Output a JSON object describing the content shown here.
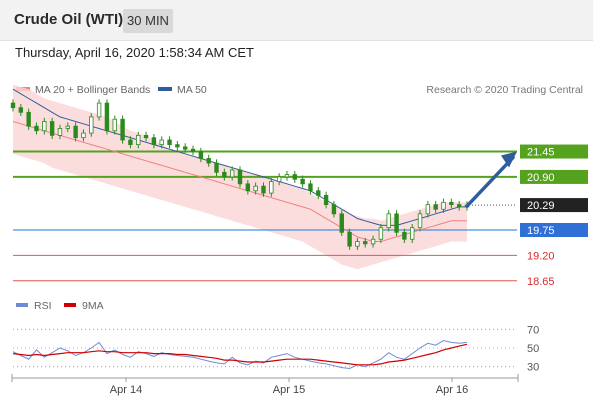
{
  "header": {
    "instrument": "Crude Oil (WTI)",
    "interval_button": "30 MIN"
  },
  "timestamp": "Thursday, April 16, 2020 1:58:34 AM CET",
  "legend": {
    "ma20": "MA 20 + Bollinger Bands",
    "ma50": "MA 50",
    "rsi": "RSI",
    "rsi_ma": "9MA"
  },
  "credit": "Research © 2020 Trading Central",
  "colors": {
    "ma20": "#f08080",
    "ma50": "#2e5d9f",
    "bollinger": "#fbd5d5",
    "resistance": "#54a21d",
    "support_blue": "#4a90e2",
    "support_red": "#e05656",
    "candle": "#2b8a1e",
    "arrow": "#2e5d9f",
    "rsi": "#6f8ad6",
    "rsi_ma": "#d00000"
  },
  "chart_data": [
    {
      "type": "candlestick",
      "xlabel": "",
      "ylabel": "",
      "x_ticks": [
        "Apr 14",
        "Apr 15",
        "Apr 16"
      ],
      "ylim": [
        18.45,
        22.35
      ],
      "levels": [
        {
          "value": 21.45,
          "label": "21.45",
          "kind": "resistance"
        },
        {
          "value": 20.9,
          "label": "20.90",
          "kind": "resistance"
        },
        {
          "value": 20.29,
          "label": "20.29",
          "kind": "current"
        },
        {
          "value": 19.75,
          "label": "19.75",
          "kind": "support-blue"
        },
        {
          "value": 19.2,
          "label": "19.20",
          "kind": "support-red"
        },
        {
          "value": 18.65,
          "label": "18.65",
          "kind": "support-red"
        }
      ],
      "close_series": [
        22.4,
        22.3,
        22.0,
        21.9,
        22.1,
        21.8,
        21.95,
        22.0,
        21.75,
        21.85,
        22.2,
        22.5,
        21.9,
        22.15,
        21.7,
        21.6,
        21.8,
        21.75,
        21.6,
        21.7,
        21.6,
        21.55,
        21.5,
        21.45,
        21.3,
        21.2,
        21.0,
        20.9,
        21.05,
        20.75,
        20.6,
        20.7,
        20.55,
        20.8,
        20.9,
        20.95,
        20.85,
        20.75,
        20.6,
        20.5,
        20.3,
        20.1,
        19.7,
        19.4,
        19.5,
        19.45,
        19.55,
        19.8,
        20.1,
        19.7,
        19.55,
        19.8,
        20.1,
        20.3,
        20.2,
        20.35,
        20.3,
        20.25,
        20.29
      ],
      "bollinger_upper": [
        22.9,
        22.85,
        22.8,
        22.7,
        22.6,
        22.55,
        22.5,
        22.45,
        22.4,
        22.35,
        22.3,
        22.25,
        22.2,
        22.1,
        22.0,
        21.9,
        21.85,
        21.8,
        21.7,
        21.6,
        21.5,
        21.45,
        21.4,
        21.35,
        21.3,
        21.25,
        21.2,
        21.15,
        21.1,
        21.05,
        21.0,
        20.95,
        20.9,
        20.85,
        20.8,
        20.75,
        20.7,
        20.65,
        20.55,
        20.45,
        20.35,
        20.3,
        20.2,
        20.1,
        20.05,
        20.0,
        20.0,
        19.95,
        20.0,
        20.05,
        20.1,
        20.15,
        20.2,
        20.25,
        20.3,
        20.35,
        20.35,
        20.35,
        20.35
      ],
      "bollinger_lower": [
        21.4,
        21.35,
        21.3,
        21.25,
        21.2,
        21.1,
        21.05,
        21.0,
        20.95,
        20.9,
        20.85,
        20.8,
        20.75,
        20.7,
        20.65,
        20.6,
        20.55,
        20.5,
        20.45,
        20.4,
        20.35,
        20.3,
        20.25,
        20.2,
        20.15,
        20.1,
        20.05,
        20.0,
        19.95,
        19.9,
        19.85,
        19.8,
        19.75,
        19.7,
        19.65,
        19.6,
        19.55,
        19.5,
        19.4,
        19.3,
        19.2,
        19.1,
        19.0,
        18.95,
        18.9,
        18.95,
        19.0,
        19.05,
        19.1,
        19.15,
        19.2,
        19.25,
        19.3,
        19.35,
        19.4,
        19.45,
        19.5,
        19.5,
        19.5
      ],
      "ma20": [
        22.1,
        22.05,
        22.0,
        21.95,
        21.9,
        21.85,
        21.8,
        21.75,
        21.7,
        21.65,
        21.6,
        21.55,
        21.5,
        21.45,
        21.4,
        21.35,
        21.3,
        21.25,
        21.2,
        21.15,
        21.1,
        21.05,
        21.0,
        20.95,
        20.9,
        20.85,
        20.8,
        20.75,
        20.7,
        20.65,
        20.6,
        20.55,
        20.5,
        20.45,
        20.4,
        20.35,
        20.3,
        20.25,
        20.2,
        20.1,
        20.0,
        19.9,
        19.8,
        19.7,
        19.6,
        19.55,
        19.5,
        19.5,
        19.55,
        19.6,
        19.65,
        19.7,
        19.75,
        19.8,
        19.85,
        19.9,
        19.95,
        19.95,
        19.95
      ],
      "ma50": [
        22.8,
        22.7,
        22.6,
        22.5,
        22.4,
        22.3,
        22.2,
        22.15,
        22.1,
        22.05,
        22.0,
        21.95,
        21.9,
        21.85,
        21.8,
        21.75,
        21.7,
        21.65,
        21.6,
        21.55,
        21.5,
        21.45,
        21.4,
        21.35,
        21.3,
        21.25,
        21.2,
        21.15,
        21.1,
        21.05,
        21.0,
        20.95,
        20.9,
        20.85,
        20.8,
        20.75,
        20.7,
        20.65,
        20.6,
        20.5,
        20.4,
        20.3,
        20.2,
        20.1,
        20.0,
        19.95,
        19.9,
        19.85,
        19.85,
        19.85,
        19.9,
        19.95,
        20.0,
        20.05,
        20.1,
        20.15,
        20.2,
        20.25,
        20.25
      ]
    },
    {
      "type": "line",
      "name": "RSI panel",
      "ylim": [
        20,
        80
      ],
      "y_ticks": [
        70,
        50,
        30
      ],
      "rsi": [
        46,
        42,
        38,
        48,
        40,
        45,
        50,
        47,
        42,
        45,
        50,
        56,
        44,
        48,
        43,
        40,
        46,
        44,
        41,
        45,
        43,
        42,
        41,
        40,
        38,
        36,
        34,
        33,
        40,
        34,
        32,
        36,
        34,
        40,
        42,
        44,
        40,
        38,
        36,
        34,
        33,
        31,
        29,
        28,
        32,
        30,
        34,
        38,
        45,
        40,
        38,
        44,
        50,
        55,
        53,
        58,
        56,
        55,
        56
      ],
      "rsi_ma": [
        44,
        43,
        42,
        43,
        42,
        43,
        44,
        45,
        45,
        45,
        46,
        47,
        46,
        46,
        45,
        45,
        45,
        45,
        44,
        44,
        44,
        43,
        43,
        42,
        41,
        40,
        39,
        37,
        37,
        36,
        35,
        35,
        35,
        36,
        37,
        38,
        38,
        38,
        38,
        37,
        36,
        35,
        34,
        33,
        32,
        32,
        32,
        33,
        35,
        36,
        37,
        39,
        41,
        43,
        45,
        48,
        50,
        52,
        54
      ]
    }
  ]
}
